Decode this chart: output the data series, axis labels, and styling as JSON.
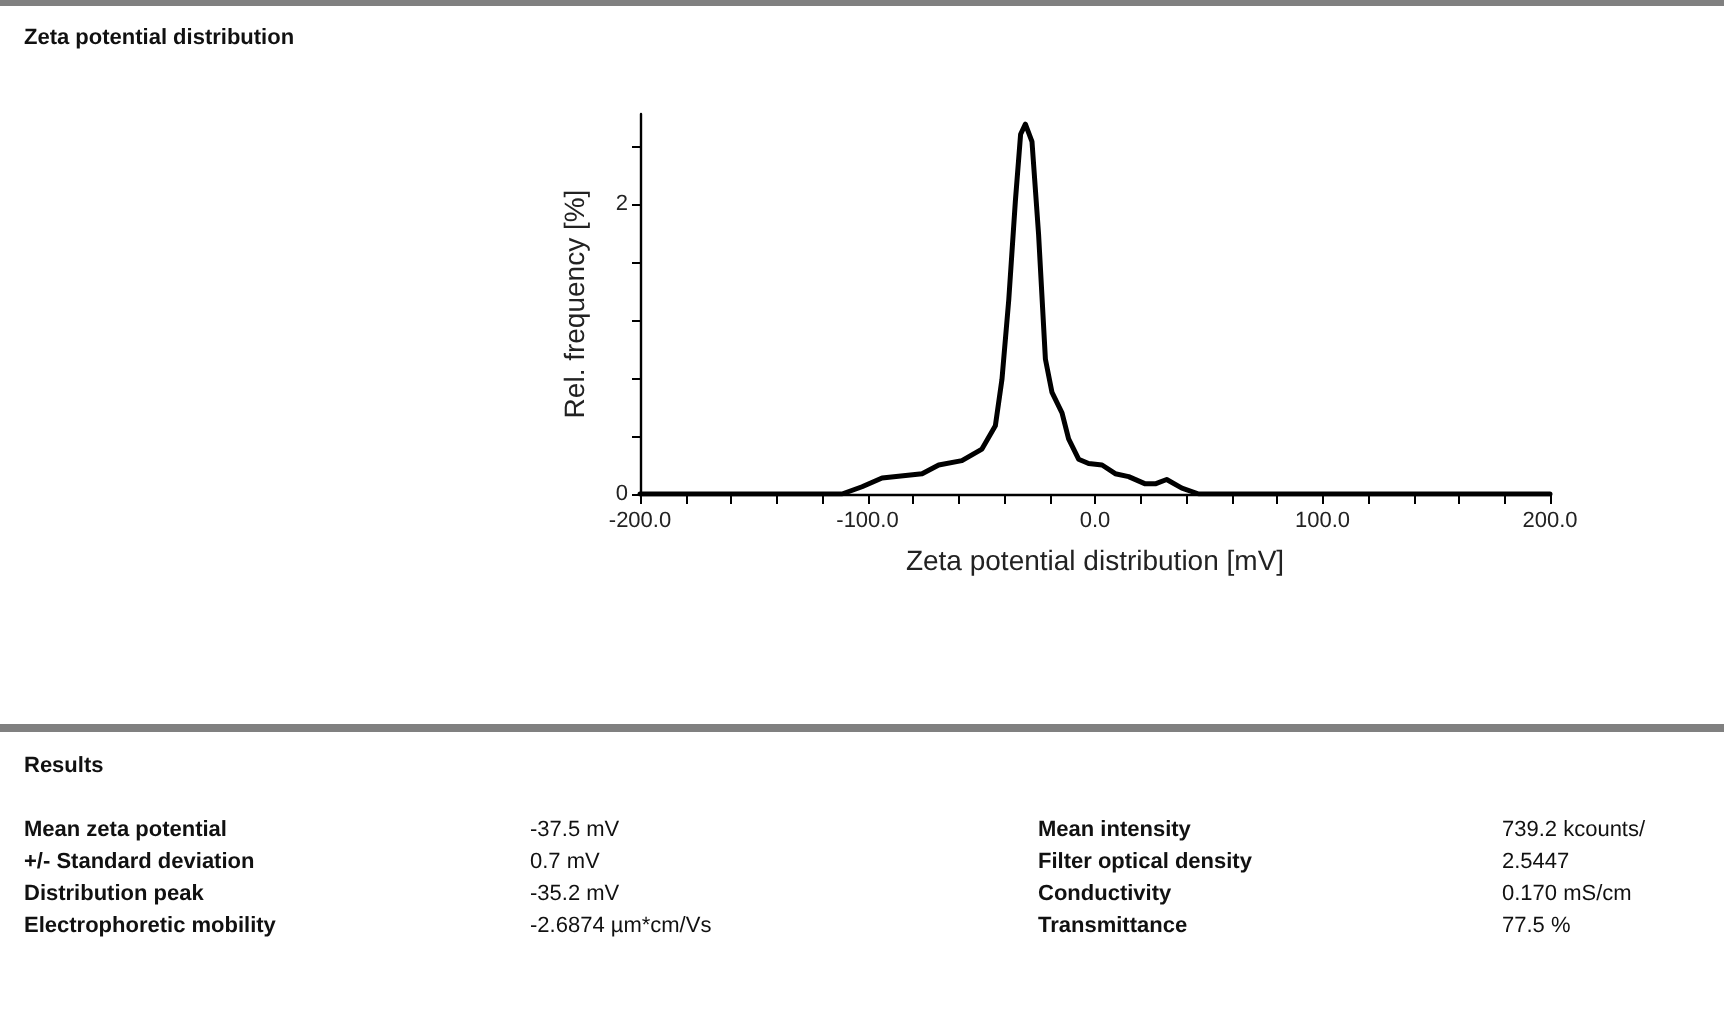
{
  "chart_data": {
    "type": "line",
    "title": "Zeta potential distribution",
    "xlabel": "Zeta potential distribution [mV]",
    "ylabel": "Rel. frequency [%]",
    "x": [
      -200,
      -111.2,
      -102.4,
      -93.6,
      -76,
      -68.7,
      -58.5,
      -49.7,
      -43.8,
      -40.9,
      -37.9,
      -35,
      -32.7,
      -30.6,
      -27.7,
      -24.8,
      -21.8,
      -18.9,
      -14.5,
      -11.6,
      -7.2,
      -2.8,
      3.1,
      8.9,
      14.8,
      22.1,
      26.5,
      31.5,
      38.2,
      45.6,
      200
    ],
    "series": [
      {
        "color": "#000000",
        "values": [
          0,
          0,
          0.05,
          0.11,
          0.14,
          0.2,
          0.23,
          0.31,
          0.47,
          0.79,
          1.34,
          2.02,
          2.48,
          2.55,
          2.43,
          1.79,
          0.93,
          0.7,
          0.56,
          0.38,
          0.24,
          0.21,
          0.2,
          0.14,
          0.12,
          0.07,
          0.07,
          0.1,
          0.04,
          0,
          0
        ]
      }
    ],
    "xlim": [
      -200,
      200
    ],
    "ylim": [
      0,
      2.62
    ],
    "xticks": [
      {
        "value": -200,
        "label": "-200.0"
      },
      {
        "value": -180,
        "label": null
      },
      {
        "value": -160,
        "label": null
      },
      {
        "value": -140,
        "label": null
      },
      {
        "value": -120,
        "label": null
      },
      {
        "value": -100,
        "label": "-100.0"
      },
      {
        "value": -80,
        "label": null
      },
      {
        "value": -60,
        "label": null
      },
      {
        "value": -40,
        "label": null
      },
      {
        "value": -20,
        "label": null
      },
      {
        "value": 0,
        "label": "0.0"
      },
      {
        "value": 20,
        "label": null
      },
      {
        "value": 40,
        "label": null
      },
      {
        "value": 60,
        "label": null
      },
      {
        "value": 80,
        "label": null
      },
      {
        "value": 100,
        "label": "100.0"
      },
      {
        "value": 120,
        "label": null
      },
      {
        "value": 140,
        "label": null
      },
      {
        "value": 160,
        "label": null
      },
      {
        "value": 180,
        "label": null
      },
      {
        "value": 200,
        "label": "200.0"
      }
    ],
    "yticks": [
      0,
      {
        "value": 0.4,
        "label": null
      },
      {
        "value": 0.8,
        "label": null
      },
      {
        "value": 1.2,
        "label": null
      },
      {
        "value": 1.6,
        "label": null
      },
      2,
      {
        "value": 2.4,
        "label": null
      }
    ],
    "grid": false,
    "marker": "none",
    "line_style": "solid",
    "annotations": [
      "Results",
      "Mean zeta potential",
      "-37.5 mV",
      "Mean intensity",
      "739.2 kcounts/",
      "+/- Standard deviation",
      "0.7 mV",
      "Filter optical density",
      "2.5447",
      "Distribution peak",
      "-35.2 mV",
      "Conductivity",
      "0.170 mS/cm",
      "Electrophoretic mobility",
      "-2.6874 µm*cm/Vs",
      "Transmittance",
      "77.5 %"
    ]
  }
}
